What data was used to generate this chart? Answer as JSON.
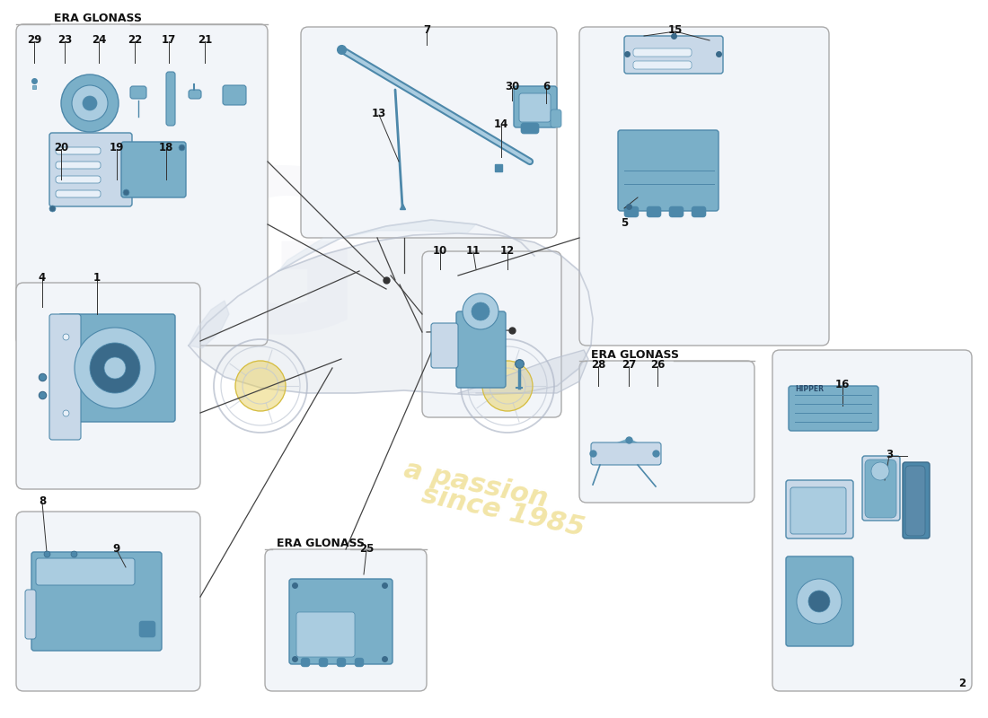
{
  "bg_color": "#ffffff",
  "box_face": "#f0f4f8",
  "box_edge": "#aaaaaa",
  "part_blue": "#7aafc8",
  "part_blue_dark": "#4d88aa",
  "part_blue_light": "#aacce0",
  "line_color": "#333333",
  "watermark1": "a passion",
  "watermark2": "since 1985",
  "watermark_color": "#e8d060",
  "era_label": "ERA GLONASS",
  "label_fs": 8,
  "num_fs": 8.5
}
